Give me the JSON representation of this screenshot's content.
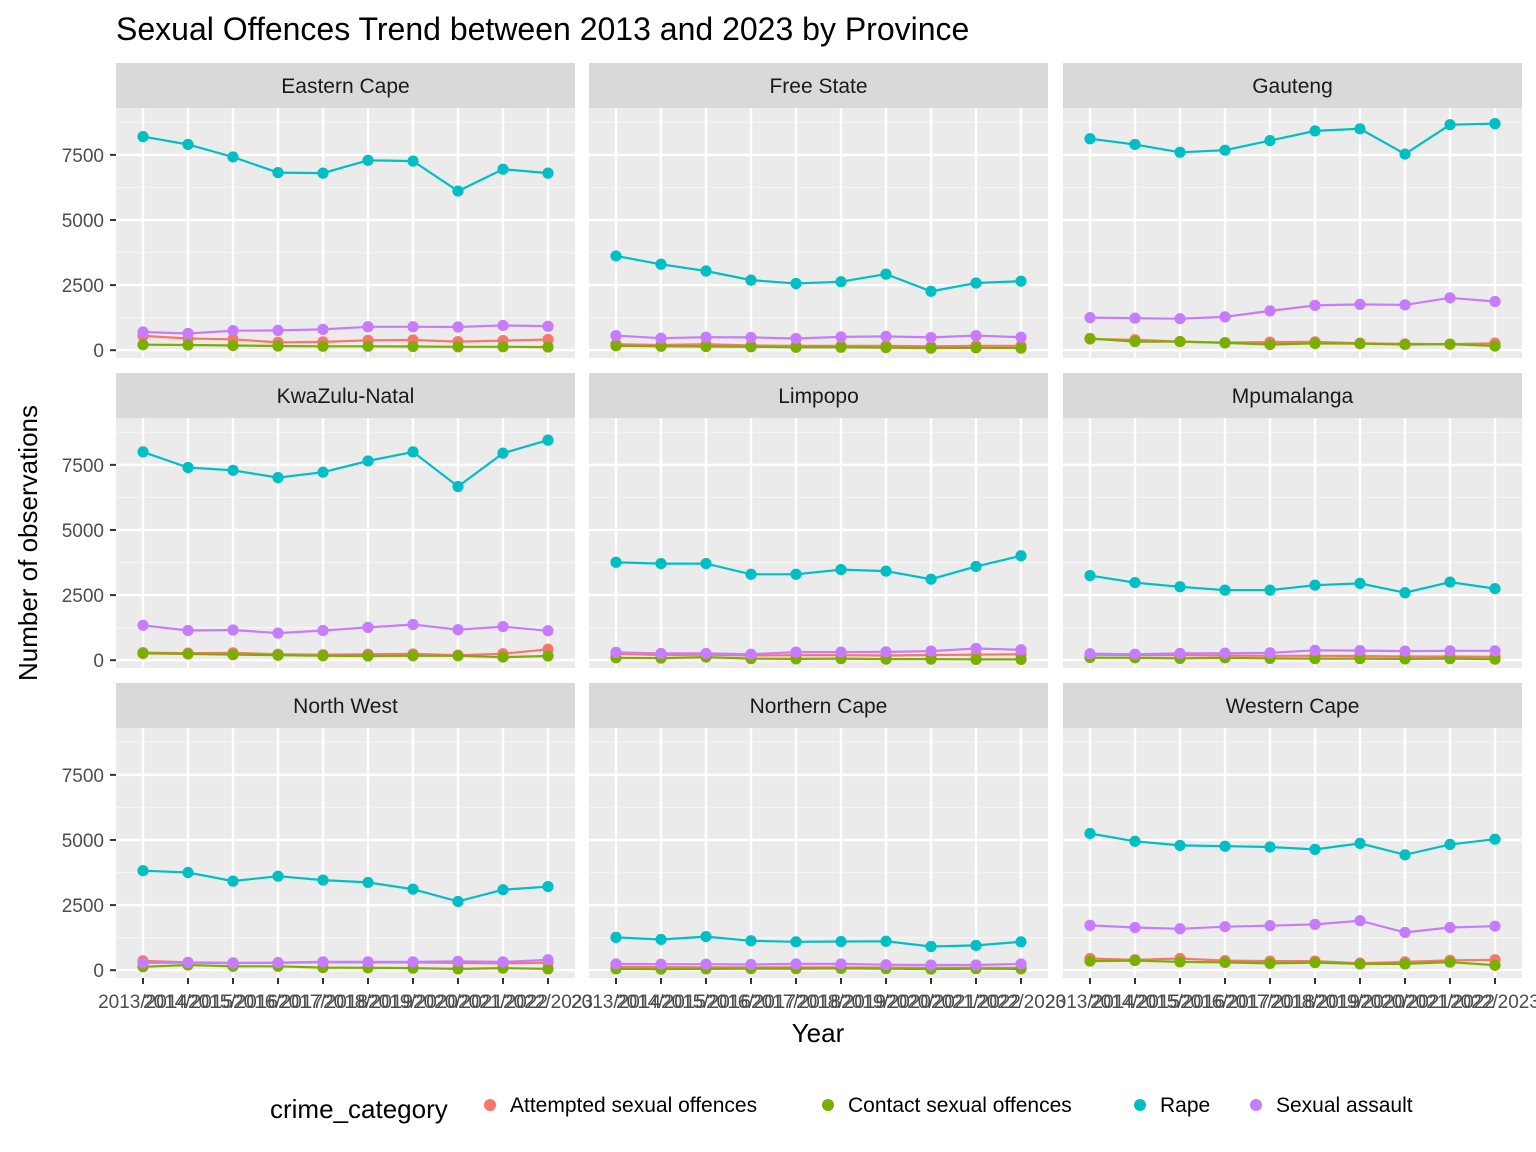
{
  "chart_data": {
    "type": "line",
    "title": "Sexual Offences Trend between 2013 and 2023 by Province",
    "xlabel": "Year",
    "ylabel": "Number of observations",
    "legend_title": "crime_category",
    "legend_position": "bottom",
    "grid": true,
    "ylim": [
      -300,
      9300
    ],
    "yticks": [
      0,
      2500,
      5000,
      7500
    ],
    "x_tick_labels": [
      "2013/2014",
      "2014/2015",
      "2015/2016",
      "2016/2017",
      "2017/2018",
      "2018/2019",
      "2019/2020",
      "2020/2021",
      "2021/2022",
      "2022/2023"
    ],
    "series_names": [
      "Attempted sexual offences",
      "Contact sexual offences",
      "Rape",
      "Sexual assault"
    ],
    "colors": {
      "Attempted sexual offences": "#F8766D",
      "Contact sexual offences": "#7CAE00",
      "Rape": "#00BFC4",
      "Sexual assault": "#C77CFF"
    },
    "panels": [
      {
        "name": "Eastern Cape",
        "series": {
          "Attempted sexual offences": [
            550,
            450,
            420,
            300,
            320,
            380,
            390,
            330,
            370,
            410
          ],
          "Contact sexual offences": [
            210,
            200,
            180,
            160,
            150,
            150,
            140,
            130,
            130,
            120
          ],
          "Rape": [
            8200,
            7900,
            7420,
            6820,
            6800,
            7290,
            7260,
            6110,
            6950,
            6800
          ],
          "Sexual assault": [
            700,
            640,
            750,
            760,
            800,
            900,
            900,
            890,
            950,
            920
          ]
        }
      },
      {
        "name": "Free State",
        "series": {
          "Attempted sexual offences": [
            230,
            200,
            230,
            180,
            170,
            170,
            170,
            150,
            170,
            170
          ],
          "Contact sexual offences": [
            170,
            150,
            140,
            130,
            110,
            110,
            100,
            80,
            90,
            80
          ],
          "Rape": [
            3620,
            3300,
            3040,
            2690,
            2560,
            2630,
            2920,
            2260,
            2580,
            2650
          ],
          "Sexual assault": [
            560,
            460,
            500,
            490,
            450,
            510,
            530,
            490,
            560,
            500
          ]
        }
      },
      {
        "name": "Gauteng",
        "series": {
          "Attempted sexual offences": [
            430,
            400,
            330,
            290,
            310,
            320,
            270,
            240,
            230,
            270
          ],
          "Contact sexual offences": [
            450,
            330,
            330,
            280,
            220,
            260,
            250,
            220,
            230,
            160
          ],
          "Rape": [
            8120,
            7900,
            7600,
            7680,
            8050,
            8420,
            8500,
            7530,
            8660,
            8700
          ],
          "Sexual assault": [
            1250,
            1230,
            1210,
            1280,
            1510,
            1720,
            1760,
            1740,
            2010,
            1870
          ]
        }
      },
      {
        "name": "KwaZulu-Natal",
        "series": {
          "Attempted sexual offences": [
            290,
            270,
            280,
            230,
            210,
            230,
            240,
            190,
            250,
            420
          ],
          "Contact sexual offences": [
            260,
            240,
            210,
            190,
            170,
            160,
            170,
            170,
            120,
            160
          ],
          "Rape": [
            8000,
            7400,
            7290,
            7010,
            7220,
            7650,
            8000,
            6670,
            7950,
            8450
          ],
          "Sexual assault": [
            1340,
            1140,
            1160,
            1040,
            1140,
            1260,
            1370,
            1170,
            1290,
            1130
          ]
        }
      },
      {
        "name": "Limpopo",
        "series": {
          "Attempted sexual offences": [
            250,
            200,
            210,
            180,
            190,
            190,
            180,
            200,
            210,
            230
          ],
          "Contact sexual offences": [
            90,
            80,
            120,
            60,
            50,
            60,
            40,
            40,
            30,
            30
          ],
          "Rape": [
            3760,
            3710,
            3710,
            3300,
            3300,
            3480,
            3420,
            3110,
            3600,
            4010
          ],
          "Sexual assault": [
            300,
            260,
            260,
            230,
            310,
            310,
            320,
            350,
            450,
            400
          ]
        }
      },
      {
        "name": "Mpumalanga",
        "series": {
          "Attempted sexual offences": [
            210,
            190,
            190,
            180,
            170,
            170,
            160,
            140,
            140,
            130
          ],
          "Contact sexual offences": [
            100,
            90,
            70,
            90,
            70,
            60,
            60,
            50,
            60,
            40
          ],
          "Rape": [
            3250,
            2980,
            2820,
            2690,
            2690,
            2880,
            2950,
            2590,
            3000,
            2750
          ],
          "Sexual assault": [
            250,
            230,
            260,
            270,
            280,
            380,
            370,
            350,
            360,
            360
          ]
        }
      },
      {
        "name": "North West",
        "series": {
          "Attempted sexual offences": [
            360,
            300,
            280,
            280,
            310,
            300,
            300,
            280,
            260,
            290
          ],
          "Contact sexual offences": [
            130,
            200,
            150,
            150,
            100,
            90,
            80,
            50,
            80,
            50
          ],
          "Rape": [
            3820,
            3750,
            3420,
            3610,
            3460,
            3370,
            3110,
            2640,
            3090,
            3210
          ],
          "Sexual assault": [
            280,
            290,
            270,
            290,
            320,
            320,
            320,
            340,
            320,
            400
          ]
        }
      },
      {
        "name": "Northern Cape",
        "series": {
          "Attempted sexual offences": [
            130,
            120,
            110,
            110,
            110,
            110,
            100,
            90,
            90,
            90
          ],
          "Contact sexual offences": [
            50,
            40,
            50,
            60,
            60,
            70,
            60,
            40,
            60,
            50
          ],
          "Rape": [
            1260,
            1180,
            1290,
            1130,
            1090,
            1100,
            1110,
            910,
            950,
            1090
          ],
          "Sexual assault": [
            240,
            230,
            230,
            220,
            240,
            240,
            210,
            200,
            200,
            240
          ]
        }
      },
      {
        "name": "Western Cape",
        "series": {
          "Attempted sexual offences": [
            450,
            400,
            450,
            370,
            350,
            350,
            270,
            320,
            380,
            400
          ],
          "Contact sexual offences": [
            350,
            370,
            320,
            300,
            260,
            290,
            240,
            240,
            310,
            190
          ],
          "Rape": [
            5250,
            4950,
            4790,
            4760,
            4730,
            4640,
            4870,
            4430,
            4830,
            5030
          ],
          "Sexual assault": [
            1720,
            1640,
            1590,
            1670,
            1710,
            1760,
            1900,
            1450,
            1640,
            1690
          ]
        }
      }
    ]
  }
}
